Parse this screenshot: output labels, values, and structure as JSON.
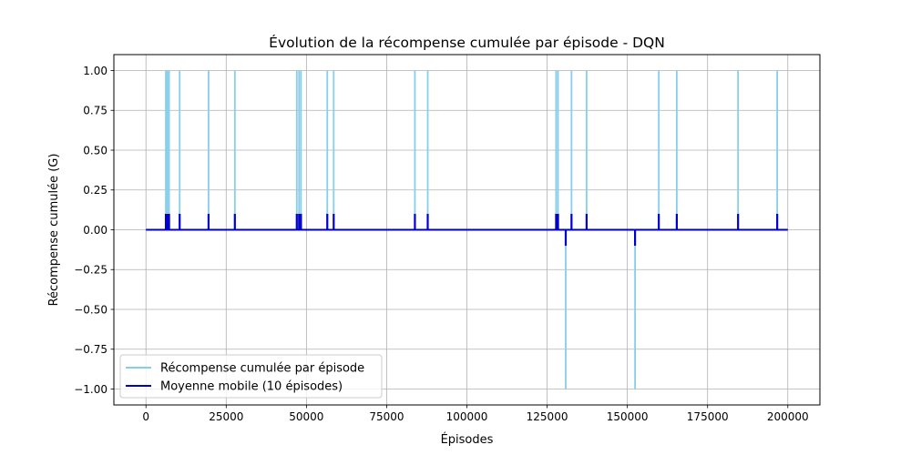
{
  "chart_data": {
    "type": "line",
    "title": "Évolution de la récompense cumulée par épisode - DQN",
    "xlabel": "Épisodes",
    "ylabel": "Récompense cumulée (G)",
    "xlim": [
      -10000,
      210000
    ],
    "ylim": [
      -1.1,
      1.1
    ],
    "x_ticks": [
      0,
      25000,
      50000,
      75000,
      100000,
      125000,
      150000,
      175000,
      200000
    ],
    "y_ticks": [
      -1.0,
      -0.75,
      -0.5,
      -0.25,
      0.0,
      0.25,
      0.5,
      0.75,
      1.0
    ],
    "x_tick_labels": [
      "0",
      "25000",
      "50000",
      "75000",
      "100000",
      "125000",
      "150000",
      "175000",
      "200000"
    ],
    "y_tick_labels": [
      "−1.00",
      "−0.75",
      "−0.50",
      "−0.25",
      "0.00",
      "0.25",
      "0.50",
      "0.75",
      "1.00"
    ],
    "x_range": [
      0,
      200000
    ],
    "grid": true,
    "legend_position": "lower-left",
    "series": [
      {
        "name": "Récompense cumulée par épisode",
        "color": "#87CEEB",
        "baseline": 0,
        "spikes": [
          {
            "x": 6200,
            "y": 1
          },
          {
            "x": 6700,
            "y": 1
          },
          {
            "x": 7200,
            "y": 1
          },
          {
            "x": 10500,
            "y": 1
          },
          {
            "x": 19500,
            "y": 1
          },
          {
            "x": 27700,
            "y": 1
          },
          {
            "x": 47000,
            "y": 1
          },
          {
            "x": 47700,
            "y": 1
          },
          {
            "x": 48300,
            "y": 1
          },
          {
            "x": 56500,
            "y": 1
          },
          {
            "x": 58500,
            "y": 1
          },
          {
            "x": 83800,
            "y": 1
          },
          {
            "x": 87800,
            "y": 1
          },
          {
            "x": 127800,
            "y": 1
          },
          {
            "x": 128400,
            "y": 1
          },
          {
            "x": 130800,
            "y": -1
          },
          {
            "x": 132600,
            "y": 1
          },
          {
            "x": 137300,
            "y": 1
          },
          {
            "x": 152400,
            "y": -1
          },
          {
            "x": 159800,
            "y": 1
          },
          {
            "x": 165400,
            "y": 1
          },
          {
            "x": 184500,
            "y": 1
          },
          {
            "x": 196700,
            "y": 1
          }
        ]
      },
      {
        "name": "Moyenne mobile (10 épisodes)",
        "color": "#0000CD",
        "baseline": 0,
        "spikes": [
          {
            "x": 6200,
            "y": 0.1
          },
          {
            "x": 6700,
            "y": 0.1
          },
          {
            "x": 7200,
            "y": 0.1
          },
          {
            "x": 10500,
            "y": 0.1
          },
          {
            "x": 19500,
            "y": 0.1
          },
          {
            "x": 27700,
            "y": 0.1
          },
          {
            "x": 47000,
            "y": 0.1
          },
          {
            "x": 47700,
            "y": 0.1
          },
          {
            "x": 48300,
            "y": 0.1
          },
          {
            "x": 56500,
            "y": 0.1
          },
          {
            "x": 58500,
            "y": 0.1
          },
          {
            "x": 83800,
            "y": 0.1
          },
          {
            "x": 87800,
            "y": 0.1
          },
          {
            "x": 127800,
            "y": 0.1
          },
          {
            "x": 128400,
            "y": 0.1
          },
          {
            "x": 130800,
            "y": -0.1
          },
          {
            "x": 132600,
            "y": 0.1
          },
          {
            "x": 137300,
            "y": 0.1
          },
          {
            "x": 152400,
            "y": -0.1
          },
          {
            "x": 159800,
            "y": 0.1
          },
          {
            "x": 165400,
            "y": 0.1
          },
          {
            "x": 184500,
            "y": 0.1
          },
          {
            "x": 196700,
            "y": 0.1
          }
        ]
      }
    ]
  }
}
